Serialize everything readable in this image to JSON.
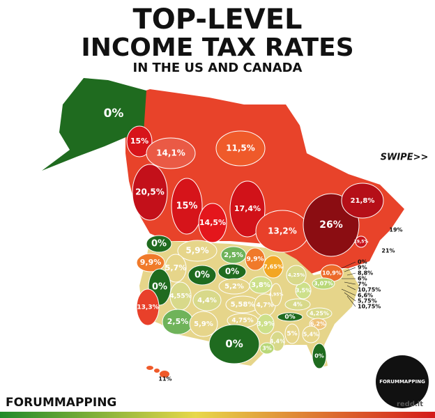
{
  "header": {
    "title_line1": "TOP-LEVEL",
    "title_line2": "INCOME TAX RATES",
    "subtitle": "IN THE US AND CANADA",
    "swipe": "SWIPE>>"
  },
  "regions": [
    {
      "label": "0%",
      "color": "#1f6b1f"
    },
    {
      "label": "15%",
      "color": "#d7141a"
    },
    {
      "label": "14,1%",
      "color": "#ea5a45"
    },
    {
      "label": "11,5%",
      "color": "#ef5a2a"
    },
    {
      "label": "20,5%",
      "color": "#c3101a"
    },
    {
      "label": "15%",
      "color": "#d6141a"
    },
    {
      "label": "14,5%",
      "color": "#e4161c"
    },
    {
      "label": "17,4%",
      "color": "#d11219"
    },
    {
      "label": "13,2%",
      "color": "#e8402a"
    },
    {
      "label": "26%",
      "color": "#8b0d12"
    },
    {
      "label": "21,8%",
      "color": "#b50f18"
    },
    {
      "label": "19,5%",
      "color": "#c8141c"
    },
    {
      "label": "19%",
      "color": "#c8141c"
    },
    {
      "label": "21%",
      "color": "#b80f18"
    },
    {
      "label": "0%",
      "color": "#1f6b1f"
    },
    {
      "label": "5,9%",
      "color": "#e6d58a"
    },
    {
      "label": "2,5%",
      "color": "#6fb35a"
    },
    {
      "label": "9,9%",
      "color": "#f07a2a"
    },
    {
      "label": "9,9%",
      "color": "#f07a2a"
    },
    {
      "label": "5,7%",
      "color": "#e6d58a"
    },
    {
      "label": "0%",
      "color": "#1f6b1f"
    },
    {
      "label": "0%",
      "color": "#1f6b1f"
    },
    {
      "label": "7,65%",
      "color": "#f3a623"
    },
    {
      "label": "0%",
      "color": "#1f6b1f"
    },
    {
      "label": "13,3%",
      "color": "#e8402a"
    },
    {
      "label": "4,55%",
      "color": "#d8d98a"
    },
    {
      "label": "4,4%",
      "color": "#d8d98a"
    },
    {
      "label": "5,2%",
      "color": "#e6d58a"
    },
    {
      "label": "3,8%",
      "color": "#cde08a"
    },
    {
      "label": "5,58%",
      "color": "#e6d58a"
    },
    {
      "label": "4,7%",
      "color": "#e6d58a"
    },
    {
      "label": "4,95%",
      "color": "#e6d58a"
    },
    {
      "label": "3,5%",
      "color": "#cde08a"
    },
    {
      "label": "4,25%",
      "color": "#d8d98a"
    },
    {
      "label": "10,9%",
      "color": "#ec6a2a"
    },
    {
      "label": "3,07%",
      "color": "#b9d878"
    },
    {
      "label": "2,5%",
      "color": "#6fb35a"
    },
    {
      "label": "5,9%",
      "color": "#e6d58a"
    },
    {
      "label": "4,75%",
      "color": "#e6d58a"
    },
    {
      "label": "3,9%",
      "color": "#cde08a"
    },
    {
      "label": "4%",
      "color": "#d8d98a"
    },
    {
      "label": "0%",
      "color": "#1f6b1f"
    },
    {
      "label": "4,25%",
      "color": "#d8d98a"
    },
    {
      "label": "6,2%",
      "color": "#efc27a"
    },
    {
      "label": "0%",
      "color": "#1f6b1f"
    },
    {
      "label": "4,4%",
      "color": "#d8d98a"
    },
    {
      "label": "5%",
      "color": "#e6d58a"
    },
    {
      "label": "5,4%",
      "color": "#e6d58a"
    },
    {
      "label": "3%",
      "color": "#b9d878"
    },
    {
      "label": "0%",
      "color": "#1f6b1f"
    },
    {
      "label": "11%",
      "color": "#ef5a2a"
    }
  ],
  "callouts": [
    "0%",
    "9%",
    "8,8%",
    "6%",
    "7%",
    "10,75%",
    "6,6%",
    "5,75%",
    "10,75%"
  ],
  "footer": {
    "brand": "FORUMMAPPING",
    "logo": "FORUMMAPPING",
    "source": "redd.it"
  }
}
